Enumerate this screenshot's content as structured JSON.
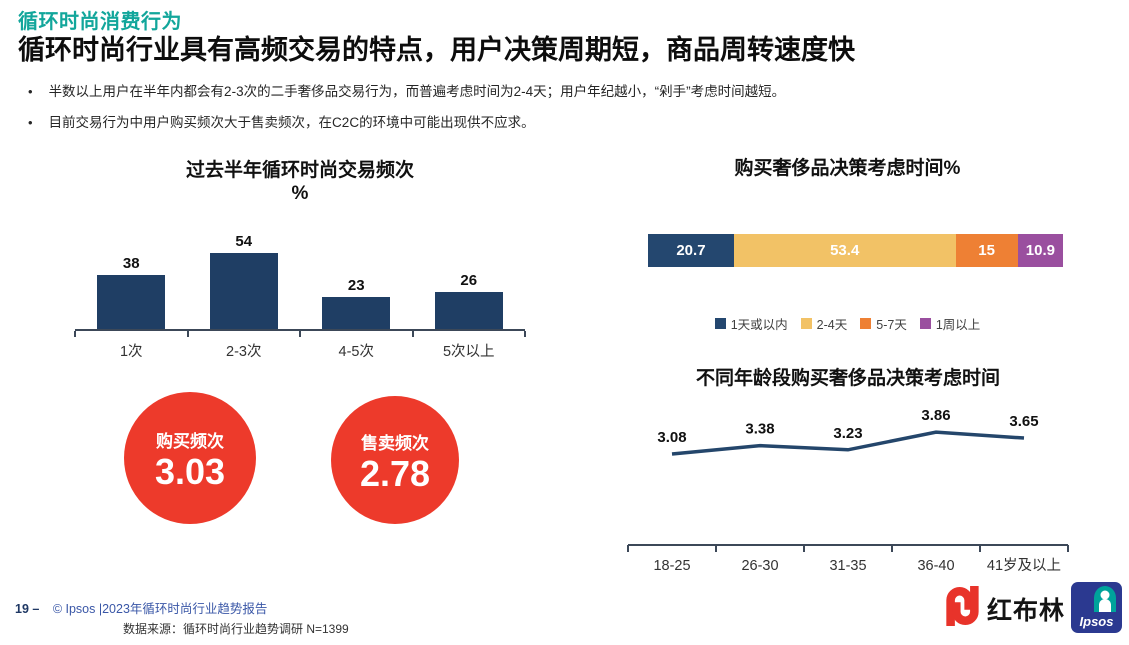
{
  "page": {
    "eyebrow": "循环时尚消费行为",
    "title": "循环时尚行业具有高频交易的特点，用户决策周期短，商品周转速度快",
    "bullets": [
      "半数以上用户在半年内都会有2-3次的二手奢侈品交易行为，而普遍考虑时间为2-4天；用户年纪越小，“剁手”考虑时间越短。",
      "目前交易行为中用户购买频次大于售卖频次，在C2C的环境中可能出现供不应求。"
    ]
  },
  "colors": {
    "teal_accent": "#12A69B",
    "navy": "#1F3E64",
    "stacked_navy": "#24476F",
    "yellow": "#F2C266",
    "orange": "#EE8034",
    "purple": "#9A4F9F",
    "kpi_red": "#ED3A2B",
    "footer_blue": "#3A57A7"
  },
  "kpis": [
    {
      "label": "购买频次",
      "value": "3.03"
    },
    {
      "label": "售卖频次",
      "value": "2.78"
    }
  ],
  "chart_data": [
    {
      "id": "trade_frequency",
      "type": "bar",
      "title": "过去半年循环时尚交易频次",
      "subtitle": "%",
      "categories": [
        "1次",
        "2-3次",
        "4-5次",
        "5次以上"
      ],
      "values": [
        38,
        54,
        23,
        26
      ],
      "bar_color": "#1F3E64",
      "ylim": [
        0,
        60
      ],
      "grid": false,
      "data_labels": true
    },
    {
      "id": "decision_time",
      "type": "bar",
      "variant": "horizontal-stacked",
      "title": "购买奢侈品决策考虑时间%",
      "categories": [
        "1天或以内",
        "2-4天",
        "5-7天",
        "1周以上"
      ],
      "values": [
        20.7,
        53.4,
        15,
        10.9
      ],
      "colors": [
        "#24476F",
        "#F2C266",
        "#EE8034",
        "#9A4F9F"
      ],
      "legend_position": "bottom",
      "data_labels": true
    },
    {
      "id": "decision_time_by_age",
      "type": "line",
      "title": "不同年龄段购买奢侈品决策考虑时间",
      "categories": [
        "18-25",
        "26-30",
        "31-35",
        "36-40",
        "41岁及以上"
      ],
      "values": [
        3.08,
        3.38,
        3.23,
        3.86,
        3.65
      ],
      "line_color": "#24466B",
      "grid": false,
      "data_labels": true
    }
  ],
  "footer": {
    "page_number": "19 –",
    "copyright": "© Ipsos |2023年循环时尚行业趋势报告",
    "source": "数据来源：循环时尚行业趋势调研 N=1399"
  },
  "logos": {
    "plum_text": "红布林",
    "ipsos_text": "Ipsos"
  }
}
